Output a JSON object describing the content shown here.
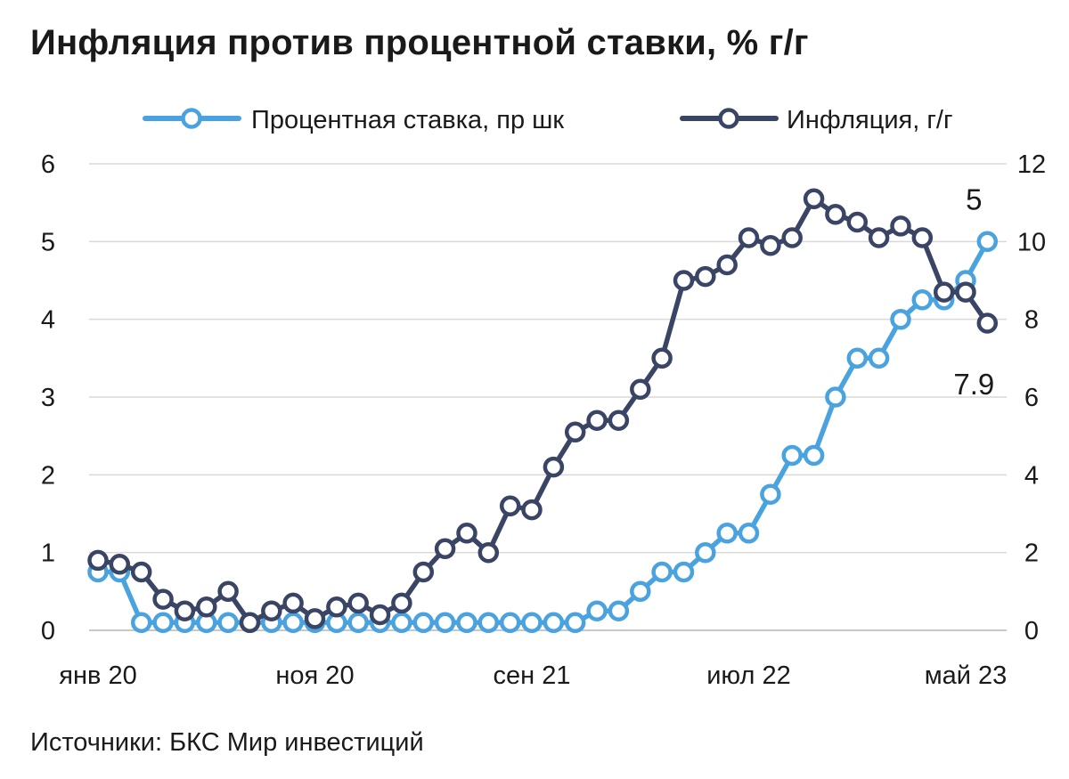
{
  "title": "Инфляция против процентной ставки, % г/г",
  "source": "Источники: БКС Мир инвестиций",
  "chart_data": {
    "type": "line",
    "title": "Инфляция против процентной ставки, % г/г",
    "x_tick_labels": [
      {
        "index": 0,
        "label": "янв 20"
      },
      {
        "index": 10,
        "label": "ноя 20"
      },
      {
        "index": 20,
        "label": "сен 21"
      },
      {
        "index": 30,
        "label": "июл 22"
      },
      {
        "index": 40,
        "label": "май 23"
      }
    ],
    "y_left": {
      "ticks": [
        0,
        1,
        2,
        3,
        4,
        5,
        6
      ],
      "range": [
        0,
        6
      ]
    },
    "y_right": {
      "ticks": [
        0,
        2,
        4,
        6,
        8,
        10,
        12
      ],
      "range": [
        0,
        12
      ]
    },
    "grid": "horizontal",
    "legend_position": "top",
    "series": [
      {
        "name": "Процентная ставка, пр шк",
        "axis": "left",
        "color": "#4aa3df",
        "values": [
          0.75,
          0.75,
          0.1,
          0.1,
          0.1,
          0.1,
          0.1,
          0.1,
          0.1,
          0.1,
          0.1,
          0.1,
          0.1,
          0.1,
          0.1,
          0.1,
          0.1,
          0.1,
          0.1,
          0.1,
          0.1,
          0.1,
          0.1,
          0.25,
          0.25,
          0.5,
          0.75,
          0.75,
          1.0,
          1.25,
          1.25,
          1.75,
          2.25,
          2.25,
          3.0,
          3.5,
          3.5,
          4.0,
          4.25,
          4.25,
          4.5,
          5.0
        ]
      },
      {
        "name": "Инфляция, г/г",
        "axis": "right",
        "color": "#3a4566",
        "values": [
          1.8,
          1.7,
          1.5,
          0.8,
          0.5,
          0.6,
          1.0,
          0.2,
          0.5,
          0.7,
          0.3,
          0.6,
          0.7,
          0.4,
          0.7,
          1.5,
          2.1,
          2.5,
          2.0,
          3.2,
          3.1,
          4.2,
          5.1,
          5.4,
          5.4,
          6.2,
          7.0,
          9.0,
          9.1,
          9.4,
          10.1,
          9.9,
          10.1,
          11.1,
          10.7,
          10.5,
          10.1,
          10.4,
          10.1,
          8.7,
          8.7,
          7.9
        ]
      }
    ],
    "annotations": [
      {
        "series": 0,
        "point": "last",
        "text": "5"
      },
      {
        "series": 1,
        "point": "last",
        "text": "7.9"
      }
    ]
  }
}
